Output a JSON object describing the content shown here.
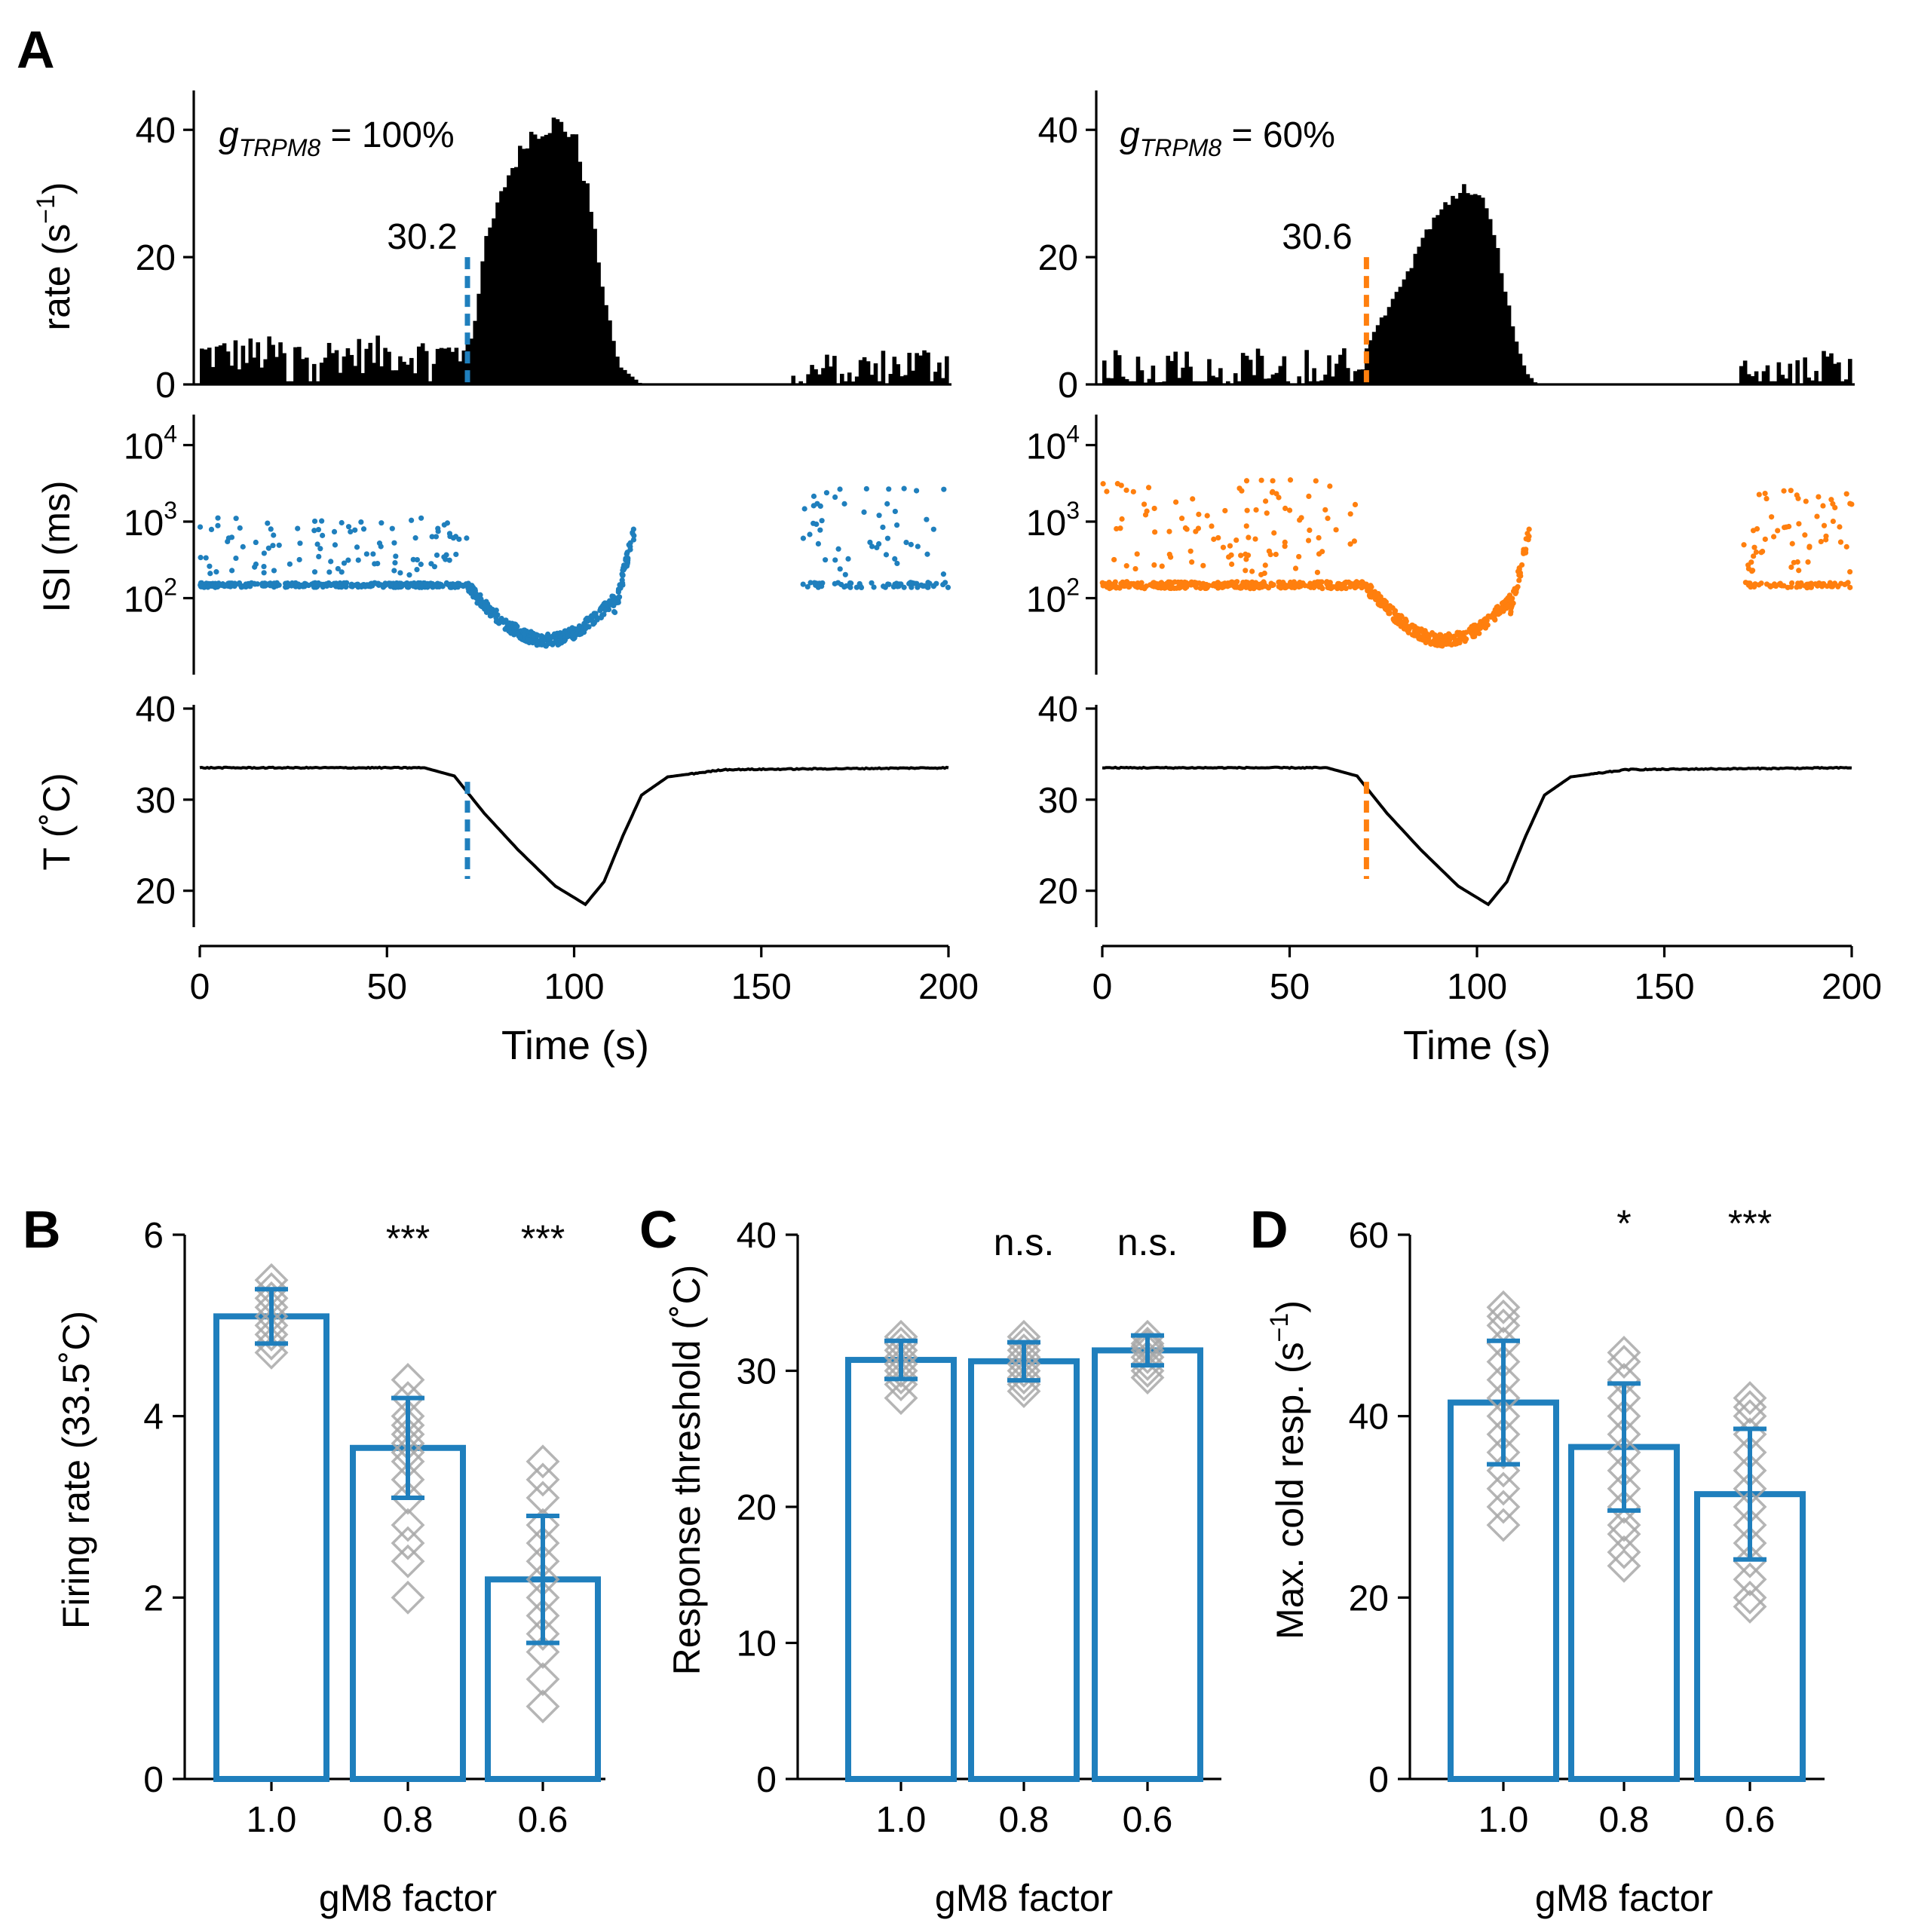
{
  "colors": {
    "blue": "#1f7fbd",
    "orange": "#ff7f0e",
    "black": "#000000",
    "gray": "#a8a8a8"
  },
  "chart_data": [
    {
      "panel": "A-left",
      "panel_label": "A",
      "type": "bar",
      "title": "g_TRPM8 = 100%",
      "title_main": "g",
      "title_sub": "TRPM8",
      "title_rest": " = 100%",
      "threshold_label": "30.2",
      "threshold_time": 71.5,
      "color": "#1f7fbd",
      "rate_ylabel": "rate (s",
      "rate_ylabel_sup": "−1",
      "rate_ylabel_close": ")",
      "rate_ylim": [
        0,
        45
      ],
      "rate_yticks": [
        "0",
        "20",
        "40"
      ],
      "rate_profile": [
        [
          0,
          5
        ],
        [
          55,
          5
        ],
        [
          70,
          5
        ],
        [
          73,
          8
        ],
        [
          76,
          22
        ],
        [
          82,
          33
        ],
        [
          88,
          40
        ],
        [
          95,
          42
        ],
        [
          100,
          40
        ],
        [
          104,
          30
        ],
        [
          108,
          14
        ],
        [
          112,
          3
        ],
        [
          116,
          1
        ],
        [
          118,
          0
        ],
        [
          158,
          0
        ],
        [
          160,
          2
        ],
        [
          200,
          4
        ]
      ],
      "isi_ylabel": "ISI (ms)",
      "isi_yticks": [
        {
          "base": "10",
          "exp": "2",
          "value": 2
        },
        {
          "base": "10",
          "exp": "3",
          "value": 3
        },
        {
          "base": "10",
          "exp": "4",
          "value": 4
        }
      ],
      "isi_ylim_log": [
        1.0,
        4.3
      ],
      "isi_gap": [
        116,
        161
      ],
      "temp_ylabel": "T (˚C)",
      "temp_ylim": [
        16,
        40
      ],
      "temp_yticks": [
        "20",
        "30",
        "40"
      ],
      "temp_profile": [
        [
          0,
          33.5
        ],
        [
          60,
          33.5
        ],
        [
          68,
          32.6
        ],
        [
          76,
          28.5
        ],
        [
          85,
          24.5
        ],
        [
          95,
          20.5
        ],
        [
          103,
          18.5
        ],
        [
          108,
          21
        ],
        [
          113,
          26
        ],
        [
          118,
          30.5
        ],
        [
          125,
          32.5
        ],
        [
          140,
          33.3
        ],
        [
          200,
          33.5
        ]
      ],
      "xlabel": "Time (s)",
      "xlim": [
        0,
        200
      ],
      "xticks": [
        "0",
        "50",
        "100",
        "150",
        "200"
      ]
    },
    {
      "panel": "A-right",
      "type": "bar",
      "title": "g_TRPM8 = 60%",
      "title_main": "g",
      "title_sub": "TRPM8",
      "title_rest": " = 60%",
      "threshold_label": "30.6",
      "threshold_time": 70.5,
      "color": "#ff7f0e",
      "rate_ylim": [
        0,
        45
      ],
      "rate_yticks": [
        "0",
        "20",
        "40"
      ],
      "rate_profile": [
        [
          0,
          3
        ],
        [
          60,
          3
        ],
        [
          70,
          5
        ],
        [
          74,
          10
        ],
        [
          80,
          16
        ],
        [
          86,
          24
        ],
        [
          92,
          29
        ],
        [
          97,
          32
        ],
        [
          102,
          29
        ],
        [
          106,
          20
        ],
        [
          110,
          8
        ],
        [
          113,
          2
        ],
        [
          116,
          0
        ],
        [
          170,
          0
        ],
        [
          172,
          2
        ],
        [
          200,
          3
        ]
      ],
      "isi_yticks": [
        {
          "base": "10",
          "exp": "2",
          "value": 2
        },
        {
          "base": "10",
          "exp": "3",
          "value": 3
        },
        {
          "base": "10",
          "exp": "4",
          "value": 4
        }
      ],
      "isi_ylim_log": [
        1.0,
        4.3
      ],
      "isi_gap": [
        114,
        171
      ],
      "temp_ylim": [
        16,
        40
      ],
      "temp_yticks": [
        "20",
        "30",
        "40"
      ],
      "temp_profile": [
        [
          0,
          33.5
        ],
        [
          60,
          33.5
        ],
        [
          68,
          32.6
        ],
        [
          76,
          28.5
        ],
        [
          85,
          24.5
        ],
        [
          95,
          20.5
        ],
        [
          103,
          18.5
        ],
        [
          108,
          21
        ],
        [
          113,
          26
        ],
        [
          118,
          30.5
        ],
        [
          125,
          32.5
        ],
        [
          140,
          33.3
        ],
        [
          200,
          33.5
        ]
      ],
      "xlabel": "Time (s)",
      "xlim": [
        0,
        200
      ],
      "xticks": [
        "0",
        "50",
        "100",
        "150",
        "200"
      ]
    },
    {
      "panel": "B",
      "panel_label": "B",
      "type": "bar",
      "categories": [
        "1.0",
        "0.8",
        "0.6"
      ],
      "values": [
        5.1,
        3.65,
        2.2
      ],
      "errors": [
        0.3,
        0.55,
        0.7
      ],
      "significance": [
        "",
        "***",
        "***"
      ],
      "points": [
        [
          5.5,
          5.4,
          5.3,
          5.2,
          5.1,
          5.0,
          4.9,
          4.8,
          4.7
        ],
        [
          4.4,
          4.2,
          4.0,
          3.9,
          3.8,
          3.7,
          3.6,
          3.5,
          3.3,
          3.1,
          2.8,
          2.6,
          2.4,
          2.0
        ],
        [
          3.5,
          3.3,
          3.1,
          2.8,
          2.6,
          2.4,
          2.2,
          2.0,
          1.8,
          1.6,
          1.4,
          1.1,
          0.8
        ]
      ],
      "ylabel": "Firing rate (33.5˚C)",
      "xlabel": "gM8 factor",
      "ylim": [
        0,
        6
      ],
      "yticks": [
        "0",
        "2",
        "4",
        "6"
      ]
    },
    {
      "panel": "C",
      "panel_label": "C",
      "type": "bar",
      "categories": [
        "1.0",
        "0.8",
        "0.6"
      ],
      "values": [
        30.8,
        30.7,
        31.5
      ],
      "errors": [
        1.4,
        1.4,
        1.1
      ],
      "significance": [
        "",
        "n.s.",
        "n.s."
      ],
      "points": [
        [
          32.5,
          32.0,
          31.5,
          31.0,
          30.5,
          30.0,
          29.5,
          29.0,
          28.0
        ],
        [
          32.5,
          32.0,
          31.5,
          31.0,
          30.5,
          30.0,
          29.5,
          29.0,
          28.5
        ],
        [
          32.5,
          32.0,
          31.8,
          31.5,
          31.0,
          30.5,
          30.0,
          29.5
        ]
      ],
      "ylabel": "Response threshold (˚C)",
      "xlabel": "gM8 factor",
      "ylim": [
        0,
        40
      ],
      "yticks": [
        "0",
        "10",
        "20",
        "30",
        "40"
      ]
    },
    {
      "panel": "D",
      "panel_label": "D",
      "type": "bar",
      "categories": [
        "1.0",
        "0.8",
        "0.6"
      ],
      "values": [
        41.5,
        36.6,
        31.4
      ],
      "errors": [
        6.8,
        7.0,
        7.2
      ],
      "significance": [
        "",
        "*",
        "***"
      ],
      "points": [
        [
          52,
          51,
          50,
          48,
          46,
          44,
          42,
          40,
          38,
          36,
          34,
          32,
          30,
          28
        ],
        [
          47,
          46,
          44,
          42,
          40,
          38,
          36,
          34,
          32,
          30,
          28,
          27,
          25,
          23.5
        ],
        [
          42,
          41,
          40,
          38,
          36,
          34,
          32,
          30,
          28,
          26,
          24,
          22,
          20,
          19
        ]
      ],
      "ylabel": "Max. cold resp. (s",
      "ylabel_sup": "−1",
      "ylabel_close": ")",
      "xlabel": "gM8 factor",
      "ylim": [
        0,
        60
      ],
      "yticks": [
        "0",
        "20",
        "40",
        "60"
      ]
    }
  ]
}
